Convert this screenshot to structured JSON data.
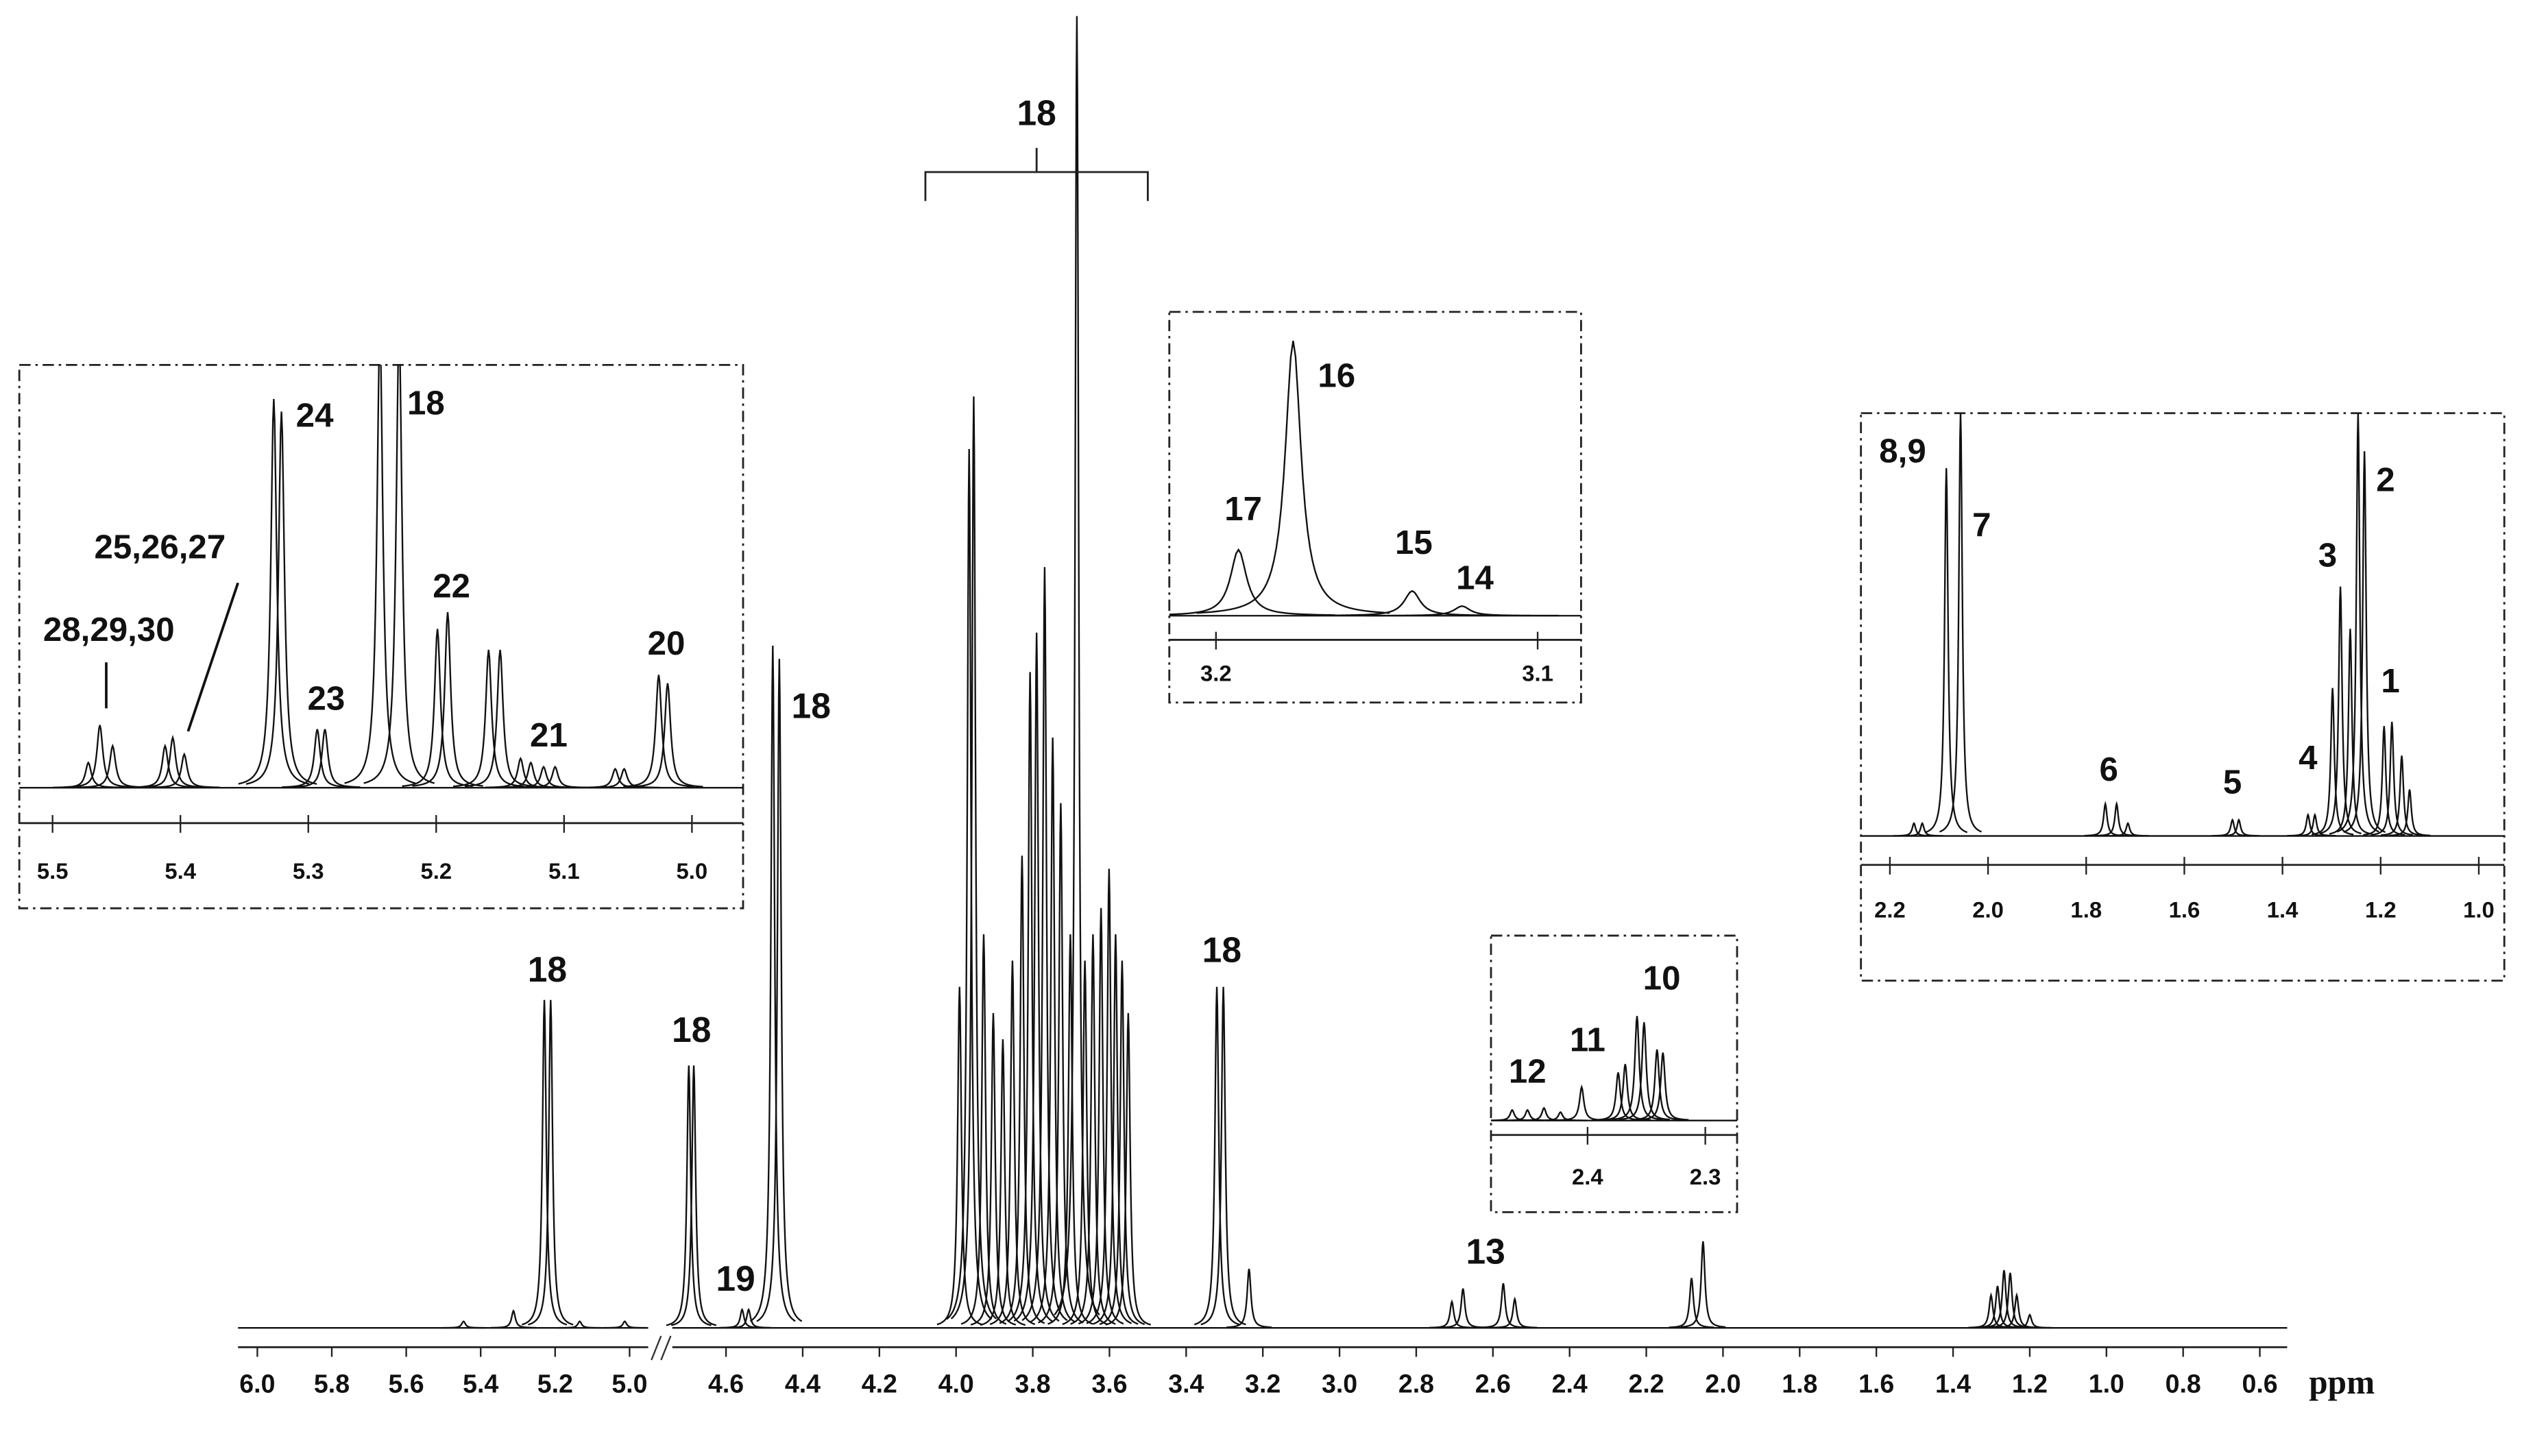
{
  "chart_data": [
    {
      "type": "spectrum",
      "xlabel": "ppm",
      "xlim": [
        6.0,
        0.6
      ],
      "axis_break": [
        4.95,
        4.74
      ],
      "ylim": [
        0,
        100
      ],
      "xticks": [
        {
          "value": 6,
          "label": "6.0"
        },
        5.8,
        5.6,
        5.4,
        5.2,
        {
          "value": 5,
          "label": "5.0"
        },
        4.6,
        4.4,
        4.2,
        {
          "value": 4,
          "label": "4.0"
        },
        3.8,
        3.6,
        3.4,
        3.2,
        {
          "value": 3,
          "label": "3.0"
        },
        2.8,
        2.6,
        2.4,
        2.2,
        {
          "value": 2,
          "label": "2.0"
        },
        1.8,
        1.6,
        1.4,
        1.2,
        {
          "value": 1,
          "label": "1.0"
        },
        0.8,
        0.6
      ],
      "x": [
        5.446,
        5.312,
        5.229,
        5.212,
        5.134,
        5.013,
        4.697,
        4.684,
        4.558,
        4.541,
        4.478,
        4.461,
        3.991,
        3.966,
        3.954,
        3.928,
        3.903,
        3.878,
        3.853,
        3.828,
        3.807,
        3.79,
        3.769,
        3.748,
        3.727,
        3.702,
        3.685,
        3.664,
        3.643,
        3.622,
        3.601,
        3.584,
        3.567,
        3.551,
        3.32,
        3.303,
        3.236,
        2.707,
        2.678,
        2.573,
        2.543,
        2.082,
        2.052,
        1.301,
        1.284,
        1.267,
        1.251,
        1.234,
        1.2
      ],
      "values": [
        0.5,
        1.3,
        25,
        25,
        0.5,
        0.5,
        20,
        20,
        1.4,
        1.4,
        52,
        51,
        26,
        67,
        71,
        30,
        24,
        22,
        28,
        36,
        50,
        53,
        58,
        45,
        40,
        30,
        100,
        28,
        30,
        32,
        35,
        30,
        28,
        24,
        26,
        26,
        4.5,
        2,
        3,
        3.4,
        2.2,
        3.8,
        6.6,
        2.5,
        3.2,
        4.4,
        4.2,
        2.5,
        1
      ],
      "annotations": [
        {
          "text": "18",
          "x": 5.221,
          "y": 27.1
        },
        {
          "text": "18",
          "x": 4.69,
          "y": 22.5
        },
        {
          "text": "19",
          "x": 4.575,
          "y": 3.55
        },
        {
          "text": "18",
          "x": 4.378,
          "y": 47.2
        },
        {
          "text": "18",
          "x": 3.79,
          "y": 92.4,
          "bracket": [
            4.08,
            3.5
          ]
        },
        {
          "text": "18",
          "x": 3.307,
          "y": 28.6
        },
        {
          "text": "13",
          "x": 2.619,
          "y": 5.6
        }
      ]
    },
    {
      "type": "spectrum",
      "xlim": [
        5.526,
        4.96
      ],
      "ylim": [
        0,
        100
      ],
      "xticks": [
        5.5,
        5.4,
        5.3,
        5.2,
        5.1,
        {
          "value": 5,
          "label": "5.0"
        }
      ],
      "x": [
        5.472,
        5.463,
        5.453,
        5.412,
        5.406,
        5.397,
        5.327,
        5.321,
        5.293,
        5.287,
        5.244,
        5.229,
        5.199,
        5.191,
        5.159,
        5.15,
        5.134,
        5.126,
        5.116,
        5.107,
        5.06,
        5.053,
        5.026,
        5.019
      ],
      "values": [
        6,
        15,
        10,
        10,
        12,
        8,
        93,
        90,
        14,
        14,
        110,
        110,
        38,
        42,
        33,
        33,
        7,
        6,
        5,
        5,
        4.5,
        4.5,
        27,
        25
      ],
      "annotations": [
        {
          "text": "28,29,30",
          "x": 5.456,
          "y": 37.3,
          "line": {
            "x": [
              5.458,
              5.458
            ],
            "y": [
              30,
              19
            ]
          }
        },
        {
          "text": "25,26,27",
          "x": 5.416,
          "y": 57,
          "line": {
            "x": [
              5.355,
              5.394
            ],
            "y": [
              49,
              13.5
            ]
          }
        },
        {
          "text": "24",
          "x": 5.295,
          "y": 88.5
        },
        {
          "text": "18",
          "x": 5.208,
          "y": 91.5
        },
        {
          "text": "22",
          "x": 5.188,
          "y": 47.7
        },
        {
          "text": "23",
          "x": 5.286,
          "y": 20.8
        },
        {
          "text": "21",
          "x": 5.112,
          "y": 12
        },
        {
          "text": "20",
          "x": 5.02,
          "y": 34
        }
      ]
    },
    {
      "type": "spectrum",
      "xlim": [
        3.2145,
        3.0865
      ],
      "ylim": [
        0,
        100
      ],
      "xticks": [
        3.2,
        3.1
      ],
      "x": [
        3.193,
        3.176,
        3.139,
        3.1235
      ],
      "values": [
        24,
        100,
        9,
        3.5
      ],
      "annotations": [
        {
          "text": "17",
          "x": 3.1915,
          "y": 38
        },
        {
          "text": "16",
          "x": 3.1625,
          "y": 86.5
        },
        {
          "text": "15",
          "x": 3.1385,
          "y": 25.7
        },
        {
          "text": "14",
          "x": 3.1195,
          "y": 12.9
        }
      ]
    },
    {
      "type": "spectrum",
      "xlim": [
        2.482,
        2.273
      ],
      "ylim": [
        0,
        150
      ],
      "xticks": [
        2.4,
        2.3
      ],
      "x": [
        2.464,
        2.451,
        2.437,
        2.423,
        2.405,
        2.374,
        2.368,
        2.358,
        2.352,
        2.341,
        2.336
      ],
      "values": [
        10,
        10,
        12,
        8,
        32,
        46,
        54,
        100,
        94,
        68,
        65
      ],
      "annotations": [
        {
          "text": "12",
          "x": 2.451,
          "y": 44.6
        },
        {
          "text": "11",
          "x": 2.4,
          "y": 75
        },
        {
          "text": "10",
          "x": 2.337,
          "y": 134
        }
      ]
    },
    {
      "type": "spectrum",
      "xlim": [
        2.259,
        0.948
      ],
      "ylim": [
        0,
        100
      ],
      "xticks": [
        2.2,
        {
          "value": 2,
          "label": "2.0"
        },
        1.8,
        1.6,
        1.4,
        1.2,
        {
          "value": 1,
          "label": "1.0"
        }
      ],
      "x": [
        2.151,
        2.134,
        2.085,
        2.056,
        1.761,
        1.738,
        1.715,
        1.502,
        1.489,
        1.348,
        1.334,
        1.298,
        1.282,
        1.262,
        1.246,
        1.233,
        1.193,
        1.177,
        1.157,
        1.141
      ],
      "values": [
        3,
        3,
        87,
        100,
        7.6,
        7.6,
        3,
        3.8,
        3.8,
        5,
        5,
        35,
        59,
        49,
        100,
        91,
        26,
        27,
        19,
        11
      ],
      "annotations": [
        {
          "text": "8,9",
          "x": 2.174,
          "y": 90.5
        },
        {
          "text": "7",
          "x": 2.013,
          "y": 73
        },
        {
          "text": "6",
          "x": 1.754,
          "y": 15.2
        },
        {
          "text": "5",
          "x": 1.502,
          "y": 12.2
        },
        {
          "text": "4",
          "x": 1.348,
          "y": 17.9
        },
        {
          "text": "3",
          "x": 1.308,
          "y": 65.8
        },
        {
          "text": "2",
          "x": 1.19,
          "y": 83.7
        },
        {
          "text": "1",
          "x": 1.18,
          "y": 36.1
        }
      ]
    }
  ]
}
